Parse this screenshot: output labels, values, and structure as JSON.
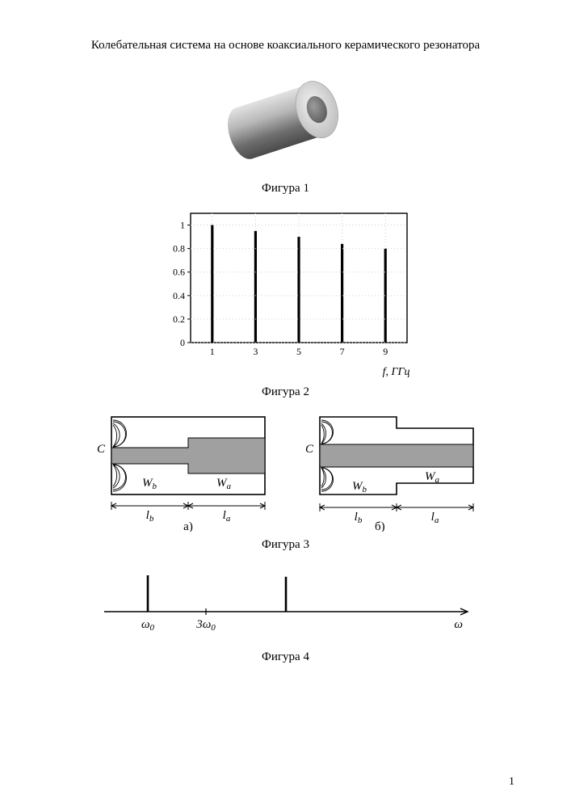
{
  "title": "Колебательная система на основе коаксиального керамического резонатора",
  "figure1": {
    "caption": "Фигура 1",
    "cylinder": {
      "outer_color_light": "#d8d8d8",
      "outer_color_dark": "#707070",
      "face_color": "#eaeaea",
      "inner_color": "#8a8a8a",
      "core_color": "#6b6b6b"
    }
  },
  "figure2": {
    "caption": "Фигура 2",
    "type": "bar",
    "x_ticks": [
      1,
      3,
      5,
      7,
      9
    ],
    "x_label": "f, ГГц",
    "y_ticks": [
      0,
      0.2,
      0.4,
      0.6,
      0.8,
      1
    ],
    "values": [
      1.0,
      0.95,
      0.9,
      0.84,
      0.8
    ],
    "ylim": [
      0,
      1.1
    ],
    "bar_color": "#000000",
    "grid_color": "#d0d0d0",
    "border_color": "#000000",
    "background": "#ffffff",
    "label_fontsize": 12
  },
  "figure3": {
    "caption": "Фигура 3",
    "diagram_a": {
      "sub_label": "а)",
      "C": "C",
      "Wb": "W_b",
      "Wa": "W_a",
      "lb": "l_b",
      "la": "l_a",
      "fill_color": "#a0a0a0",
      "outline_color": "#000000",
      "background": "#ffffff"
    },
    "diagram_b": {
      "sub_label": "б)",
      "C": "C",
      "Wb": "W_b",
      "Wa": "W_a",
      "lb": "l_b",
      "la": "l_a",
      "fill_color": "#a0a0a0",
      "outline_color": "#000000",
      "background": "#ffffff"
    }
  },
  "figure4": {
    "caption": "Фигура 4",
    "type": "line-spectrum",
    "axis_label": "ω",
    "tick0_label": "ω₀",
    "tick1_label": "3ω₀",
    "peak_positions": [
      0.12,
      0.5
    ],
    "peak_heights": [
      1.0,
      0.96
    ],
    "tick_position": 0.28,
    "axis_color": "#000000",
    "peak_color": "#000000"
  },
  "pagenum": "1"
}
